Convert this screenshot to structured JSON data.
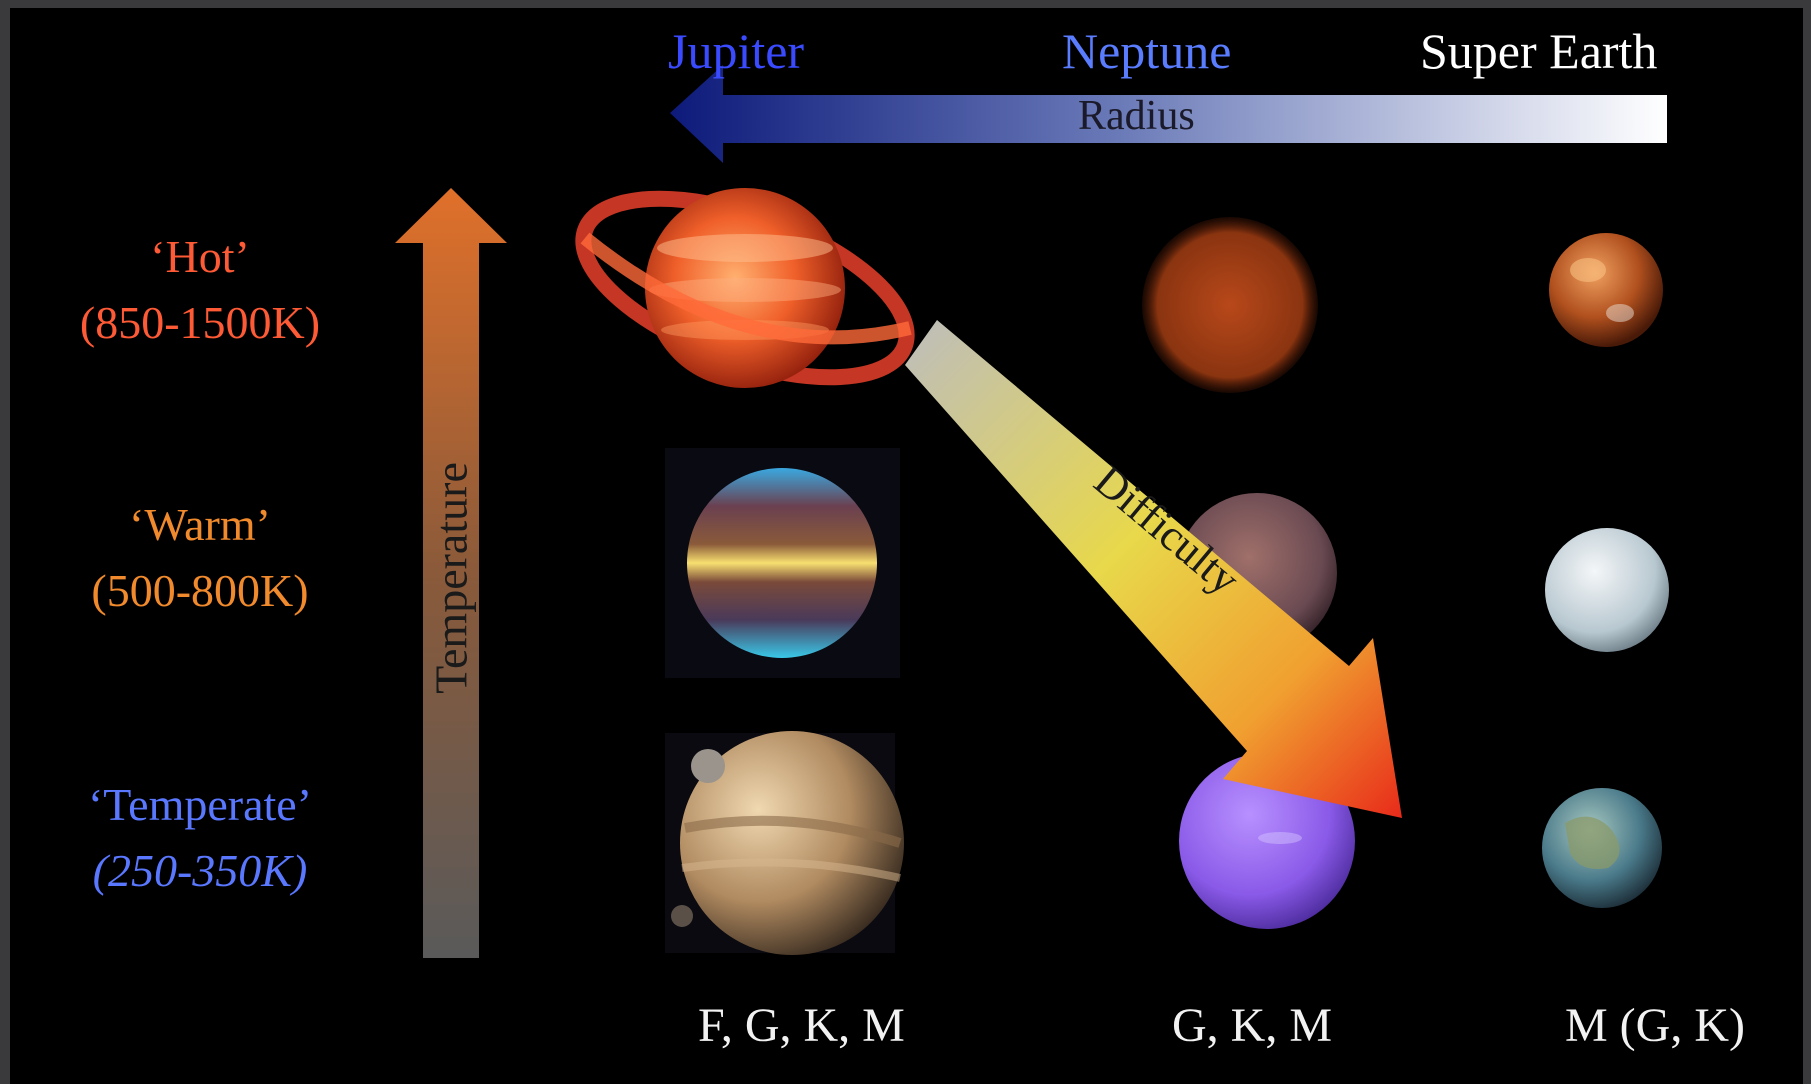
{
  "columns": {
    "jupiter": "Jupiter",
    "neptune": "Neptune",
    "super_earth": "Super Earth"
  },
  "axes": {
    "radius": "Radius",
    "temperature": "Temperature",
    "difficulty": "Difficulty"
  },
  "rows": {
    "hot": {
      "name": "‘Hot’",
      "range": "(850-1500K)"
    },
    "warm": {
      "name": "‘Warm’",
      "range": "(500-800K)"
    },
    "temperate": {
      "name": "‘Temperate’",
      "range": "(250-350K)"
    }
  },
  "star_types": {
    "jupiter": "F, G, K, M",
    "neptune": "G, K, M",
    "super_earth": "M (G, K)"
  },
  "colors": {
    "hot": "#ff5a36",
    "warm": "#f08a2c",
    "temperate": "#5a78ff",
    "jupiter_label": "#3a4bff",
    "neptune_label": "#5a7cff",
    "super_earth_label": "#ffffff"
  }
}
